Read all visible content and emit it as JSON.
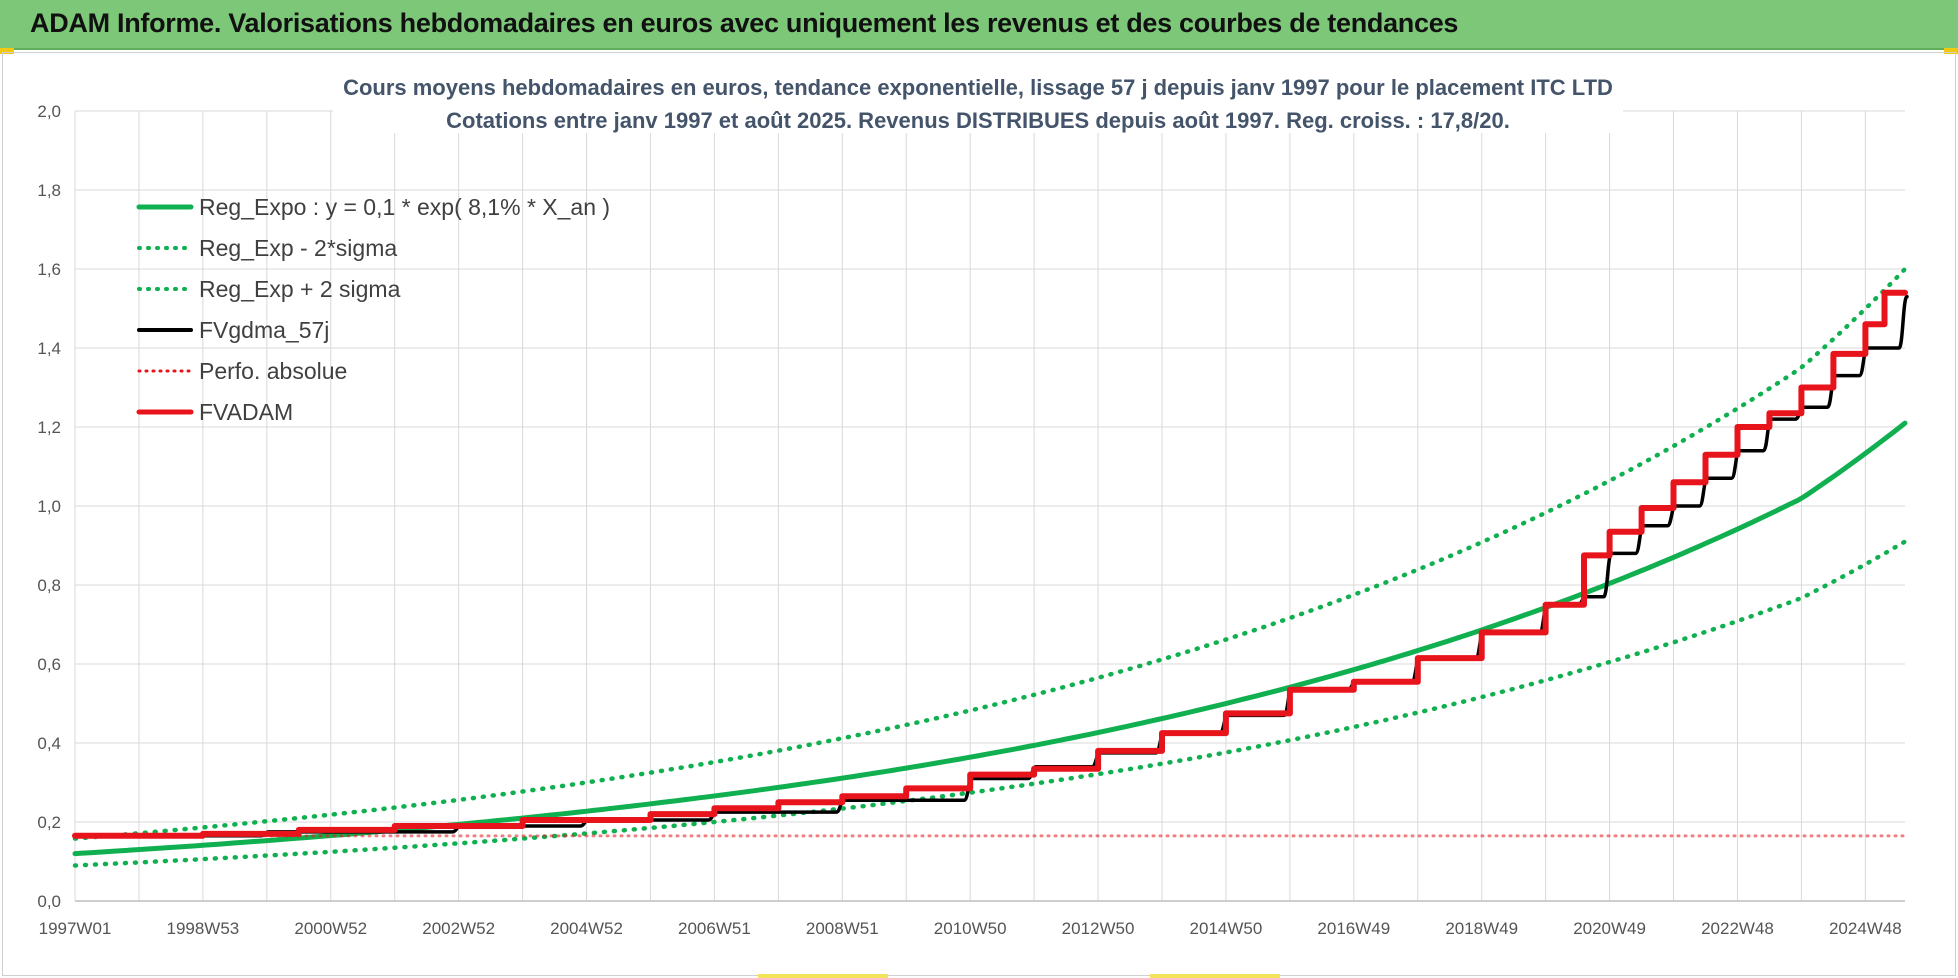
{
  "banner": {
    "title": "ADAM Informe. Valorisations hebdomadaires en euros avec uniquement les revenus et des courbes de tendances"
  },
  "colors": {
    "banner_bg": "#7dc878",
    "reg_green": "#10b050",
    "black": "#000000",
    "red": "#e8141c",
    "grid": "#d9d9d9"
  },
  "chart_data": {
    "type": "line",
    "title_line1": "Cours moyens hebdomadaires en euros, tendance exponentielle, lissage 57 j depuis janv 1997 pour le placement ITC LTD",
    "title_line2": "Cotations entre janv 1997 et août 2025. Revenus DISTRIBUES depuis août 1997. Reg. croiss. : 17,8/20.",
    "xlabel": "",
    "ylabel": "",
    "x_range": [
      1997.0,
      2025.62
    ],
    "ylim": [
      0,
      2.0
    ],
    "y_ticks": [
      "0,0",
      "0,2",
      "0,4",
      "0,6",
      "0,8",
      "1,0",
      "1,2",
      "1,4",
      "1,6",
      "1,8",
      "2,0"
    ],
    "x_ticks": [
      {
        "label": "1997W01",
        "x": 1997.0
      },
      {
        "label": "1998W53",
        "x": 1999.0
      },
      {
        "label": "2000W52",
        "x": 2001.0
      },
      {
        "label": "2002W52",
        "x": 2003.0
      },
      {
        "label": "2004W52",
        "x": 2005.0
      },
      {
        "label": "2006W51",
        "x": 2007.0
      },
      {
        "label": "2008W51",
        "x": 2009.0
      },
      {
        "label": "2010W50",
        "x": 2011.0
      },
      {
        "label": "2012W50",
        "x": 2013.0
      },
      {
        "label": "2014W50",
        "x": 2015.0
      },
      {
        "label": "2016W49",
        "x": 2017.0
      },
      {
        "label": "2018W49",
        "x": 2019.0
      },
      {
        "label": "2020W49",
        "x": 2021.0
      },
      {
        "label": "2022W48",
        "x": 2023.0
      },
      {
        "label": "2024W48",
        "x": 2025.0
      }
    ],
    "grid": true,
    "legend_position": "top-left",
    "series": [
      {
        "name": "Reg_Expo : y = 0,1 * exp( 8,1% *  X_an )",
        "color": "#10b050",
        "style": "solid",
        "x": [
          1997.0,
          2000.0,
          2003.0,
          2006.0,
          2009.0,
          2012.0,
          2015.0,
          2018.0,
          2021.0,
          2024.0,
          2025.62
        ],
        "values": [
          0.12,
          0.153,
          0.194,
          0.246,
          0.311,
          0.394,
          0.5,
          0.634,
          0.804,
          1.019,
          1.21
        ]
      },
      {
        "name": "Reg_Exp - 2*sigma",
        "color": "#10b050",
        "style": "dotted",
        "x": [
          1997.0,
          2000.0,
          2003.0,
          2006.0,
          2009.0,
          2012.0,
          2015.0,
          2018.0,
          2021.0,
          2024.0,
          2025.62
        ],
        "values": [
          0.09,
          0.115,
          0.146,
          0.185,
          0.234,
          0.297,
          0.376,
          0.477,
          0.605,
          0.767,
          0.91
        ]
      },
      {
        "name": "Reg_Exp + 2 sigma",
        "color": "#10b050",
        "style": "dotted",
        "x": [
          1997.0,
          2000.0,
          2003.0,
          2006.0,
          2009.0,
          2012.0,
          2015.0,
          2018.0,
          2021.0,
          2024.0,
          2025.62
        ],
        "values": [
          0.158,
          0.202,
          0.256,
          0.325,
          0.412,
          0.522,
          0.662,
          0.839,
          1.064,
          1.35,
          1.6
        ]
      },
      {
        "name": "FVgdma_57j",
        "color": "#000000",
        "style": "solid",
        "x": [
          1997.0,
          2000.0,
          2003.0,
          2005.0,
          2007.0,
          2009.0,
          2011.0,
          2012.0,
          2013.0,
          2014.0,
          2015.0,
          2016.0,
          2017.0,
          2018.0,
          2019.0,
          2020.0,
          2020.6,
          2021.0,
          2021.5,
          2022.0,
          2022.5,
          2023.0,
          2023.5,
          2024.0,
          2024.5,
          2025.0,
          2025.62
        ],
        "values": [
          0.165,
          0.175,
          0.19,
          0.205,
          0.225,
          0.255,
          0.31,
          0.34,
          0.375,
          0.425,
          0.47,
          0.535,
          0.555,
          0.615,
          0.68,
          0.75,
          0.77,
          0.88,
          0.95,
          1.0,
          1.07,
          1.14,
          1.22,
          1.25,
          1.33,
          1.4,
          1.53
        ]
      },
      {
        "name": "Perfo. absolue",
        "color": "#e8141c",
        "style": "dotted",
        "x": [
          1997.0,
          2025.62
        ],
        "values": [
          0.165,
          0.165
        ]
      },
      {
        "name": "FVADAM",
        "color": "#e8141c",
        "style": "step",
        "x": [
          1997.0,
          1999.0,
          2000.5,
          2002.0,
          2004.0,
          2006.0,
          2007.0,
          2008.0,
          2009.0,
          2010.0,
          2011.0,
          2012.0,
          2013.0,
          2014.0,
          2015.0,
          2016.0,
          2017.0,
          2018.0,
          2019.0,
          2020.0,
          2020.6,
          2021.0,
          2021.5,
          2022.0,
          2022.5,
          2023.0,
          2023.5,
          2024.0,
          2024.5,
          2025.0,
          2025.3,
          2025.62
        ],
        "values": [
          0.165,
          0.17,
          0.18,
          0.19,
          0.205,
          0.22,
          0.235,
          0.25,
          0.265,
          0.285,
          0.32,
          0.335,
          0.38,
          0.425,
          0.475,
          0.535,
          0.555,
          0.615,
          0.68,
          0.75,
          0.875,
          0.935,
          0.995,
          1.06,
          1.13,
          1.2,
          1.235,
          1.3,
          1.385,
          1.46,
          1.54,
          1.54
        ]
      }
    ]
  }
}
